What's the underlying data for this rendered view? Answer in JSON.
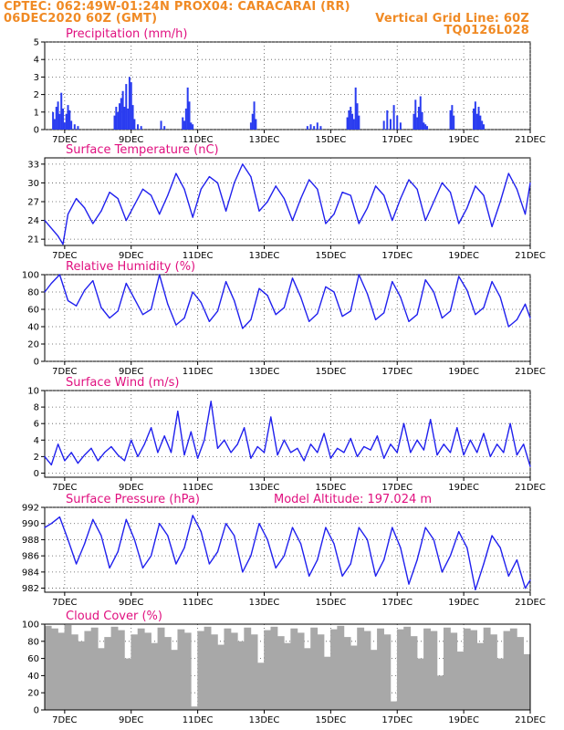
{
  "header": {
    "line1_left": "CPTEC:   062:49W-01:24N   PROX04: CARACARAI (RR)",
    "line2_left": "06DEC2020 60Z (GMT)",
    "line2_right": "Vertical Grid Line: 60Z",
    "line3_right": "TQ0126L028"
  },
  "colors": {
    "header": "#f08a24",
    "title": "#e0107f",
    "series": "#2020ee",
    "bars": "#2a3cf0",
    "cloud": "#a8a8a8"
  },
  "x_axis": {
    "tick_labels": [
      "7DEC",
      "9DEC",
      "11DEC",
      "13DEC",
      "15DEC",
      "17DEC",
      "19DEC",
      "21DEC"
    ],
    "tick_days": [
      7,
      9,
      11,
      13,
      15,
      17,
      19,
      21
    ],
    "range_days": [
      6.4,
      21.0
    ]
  },
  "chart_data": [
    {
      "type": "bar",
      "title": "Precipitation (mm/h)",
      "ylim": [
        0,
        5
      ],
      "yticks": [
        0,
        1,
        2,
        3,
        4,
        5
      ],
      "x_days": [
        6.65,
        6.7,
        6.75,
        6.8,
        6.85,
        6.9,
        6.95,
        7.0,
        7.05,
        7.1,
        7.15,
        7.2,
        7.3,
        7.4,
        8.5,
        8.55,
        8.6,
        8.65,
        8.7,
        8.75,
        8.8,
        8.85,
        8.9,
        8.95,
        9.0,
        9.05,
        9.1,
        9.2,
        9.3,
        9.9,
        10.0,
        10.55,
        10.6,
        10.65,
        10.7,
        10.75,
        10.8,
        10.85,
        12.6,
        12.65,
        12.7,
        12.75,
        14.3,
        14.4,
        14.5,
        14.6,
        14.7,
        15.5,
        15.55,
        15.6,
        15.65,
        15.7,
        15.75,
        15.8,
        15.85,
        16.6,
        16.7,
        16.8,
        16.9,
        17.0,
        17.1,
        17.5,
        17.55,
        17.6,
        17.65,
        17.7,
        17.75,
        17.8,
        17.85,
        17.9,
        18.6,
        18.65,
        18.7,
        19.3,
        19.35,
        19.4,
        19.45,
        19.5,
        19.55,
        19.6
      ],
      "values": [
        1.0,
        0.6,
        1.3,
        1.6,
        0.9,
        2.1,
        1.2,
        0.4,
        0.9,
        1.4,
        1.1,
        0.5,
        0.3,
        0.2,
        0.8,
        1.3,
        1.0,
        1.5,
        1.8,
        2.2,
        1.3,
        2.6,
        1.2,
        3.0,
        2.7,
        1.4,
        0.6,
        0.3,
        0.2,
        0.5,
        0.2,
        0.7,
        0.5,
        1.2,
        2.4,
        1.6,
        0.4,
        0.3,
        0.4,
        0.9,
        1.6,
        0.6,
        0.2,
        0.3,
        0.2,
        0.4,
        0.2,
        0.7,
        1.1,
        1.3,
        0.9,
        0.6,
        2.4,
        1.5,
        0.8,
        0.5,
        1.1,
        0.6,
        1.4,
        0.8,
        0.4,
        0.9,
        1.7,
        0.7,
        1.3,
        1.9,
        1.0,
        0.4,
        0.3,
        0.2,
        1.1,
        1.4,
        0.8,
        1.2,
        1.6,
        0.9,
        1.3,
        0.8,
        0.5,
        0.3
      ]
    },
    {
      "type": "line",
      "title": "Surface Temperature (nC)",
      "ylim": [
        20,
        34
      ],
      "yticks": [
        21,
        24,
        27,
        30,
        33
      ],
      "x_days": [
        6.4,
        6.8,
        6.95,
        7.1,
        7.35,
        7.6,
        7.85,
        8.1,
        8.35,
        8.6,
        8.85,
        9.1,
        9.35,
        9.6,
        9.85,
        10.1,
        10.35,
        10.6,
        10.85,
        11.1,
        11.35,
        11.6,
        11.85,
        12.1,
        12.35,
        12.6,
        12.85,
        13.1,
        13.35,
        13.6,
        13.85,
        14.1,
        14.35,
        14.6,
        14.85,
        15.1,
        15.35,
        15.6,
        15.85,
        16.1,
        16.35,
        16.6,
        16.85,
        17.1,
        17.35,
        17.6,
        17.85,
        18.1,
        18.35,
        18.6,
        18.85,
        19.1,
        19.35,
        19.6,
        19.85,
        20.1,
        20.35,
        20.6,
        20.85,
        21.0
      ],
      "values": [
        24,
        21.5,
        20.2,
        25,
        27.5,
        26,
        23.5,
        25.5,
        28.5,
        27.5,
        24,
        26.5,
        29,
        28,
        25,
        28,
        31.5,
        29,
        24.5,
        29,
        31,
        30,
        25.5,
        30,
        33,
        31,
        25.5,
        27,
        29.5,
        27.5,
        24,
        27.5,
        30.5,
        29,
        23.5,
        25,
        28.5,
        28,
        23.5,
        26,
        29.5,
        28,
        24,
        27.5,
        30.5,
        29,
        24,
        27,
        30,
        28.5,
        23.5,
        26,
        29.5,
        28,
        23,
        27,
        31.5,
        29,
        25,
        30
      ]
    },
    {
      "type": "line",
      "title": "Relative Humidity (%)",
      "ylim": [
        0,
        100
      ],
      "yticks": [
        0,
        20,
        40,
        60,
        80,
        100
      ],
      "x_days": [
        6.4,
        6.6,
        6.85,
        7.1,
        7.35,
        7.6,
        7.85,
        8.1,
        8.35,
        8.6,
        8.85,
        9.1,
        9.35,
        9.6,
        9.85,
        10.1,
        10.35,
        10.6,
        10.85,
        11.1,
        11.35,
        11.6,
        11.85,
        12.1,
        12.35,
        12.6,
        12.85,
        13.1,
        13.35,
        13.6,
        13.85,
        14.1,
        14.35,
        14.6,
        14.85,
        15.1,
        15.35,
        15.6,
        15.85,
        16.1,
        16.35,
        16.6,
        16.85,
        17.1,
        17.35,
        17.6,
        17.85,
        18.1,
        18.35,
        18.6,
        18.85,
        19.1,
        19.35,
        19.6,
        19.85,
        20.1,
        20.35,
        20.6,
        20.85,
        21.0
      ],
      "values": [
        80,
        90,
        100,
        70,
        64,
        82,
        93,
        62,
        50,
        58,
        90,
        72,
        54,
        60,
        100,
        66,
        42,
        50,
        80,
        68,
        46,
        58,
        92,
        70,
        38,
        48,
        84,
        76,
        54,
        62,
        96,
        74,
        46,
        55,
        86,
        80,
        52,
        58,
        100,
        78,
        48,
        56,
        92,
        74,
        46,
        54,
        94,
        80,
        50,
        58,
        98,
        82,
        54,
        62,
        92,
        74,
        40,
        48,
        66,
        50
      ]
    },
    {
      "type": "line",
      "title": "Surface Wind (m/s)",
      "ylim": [
        -0.5,
        10
      ],
      "yticks": [
        0,
        2,
        4,
        6,
        8,
        10
      ],
      "x_days": [
        6.4,
        6.6,
        6.8,
        7.0,
        7.2,
        7.4,
        7.6,
        7.8,
        8.0,
        8.2,
        8.4,
        8.6,
        8.8,
        9.0,
        9.2,
        9.4,
        9.6,
        9.8,
        10.0,
        10.2,
        10.4,
        10.6,
        10.8,
        11.0,
        11.2,
        11.4,
        11.6,
        11.8,
        12.0,
        12.2,
        12.4,
        12.6,
        12.8,
        13.0,
        13.2,
        13.4,
        13.6,
        13.8,
        14.0,
        14.2,
        14.4,
        14.6,
        14.8,
        15.0,
        15.2,
        15.4,
        15.6,
        15.8,
        16.0,
        16.2,
        16.4,
        16.6,
        16.8,
        17.0,
        17.2,
        17.4,
        17.6,
        17.8,
        18.0,
        18.2,
        18.4,
        18.6,
        18.8,
        19.0,
        19.2,
        19.4,
        19.6,
        19.8,
        20.0,
        20.2,
        20.4,
        20.6,
        20.8,
        21.0
      ],
      "values": [
        2,
        1,
        3.5,
        1.5,
        2.5,
        1.2,
        2.2,
        3,
        1.5,
        2.5,
        3.2,
        2.2,
        1.5,
        4,
        2,
        3.5,
        5.5,
        2.5,
        4.5,
        2.5,
        7.5,
        2.2,
        5,
        1.8,
        4,
        8.7,
        3,
        4,
        2.5,
        3.5,
        5.5,
        1.8,
        3.2,
        2.5,
        6.8,
        2.2,
        4,
        2.5,
        3,
        1.5,
        3.5,
        2.5,
        4.8,
        1.8,
        3,
        2.5,
        4.2,
        2,
        3.2,
        2.8,
        4.5,
        1.8,
        3.5,
        2.5,
        6,
        2.5,
        4,
        2.8,
        6.5,
        2.2,
        3.5,
        2.5,
        5.5,
        2.2,
        4,
        2.5,
        4.8,
        2,
        3.5,
        2.5,
        6,
        2.2,
        3.5,
        0.8
      ]
    },
    {
      "type": "line",
      "title": "Surface Pressure (hPa)",
      "annotation": "Model Altitude: 197.024 m",
      "ylim": [
        981.5,
        992
      ],
      "yticks": [
        982,
        984,
        986,
        988,
        990,
        992
      ],
      "x_days": [
        6.4,
        6.6,
        6.85,
        7.1,
        7.35,
        7.6,
        7.85,
        8.1,
        8.35,
        8.6,
        8.85,
        9.1,
        9.35,
        9.6,
        9.85,
        10.1,
        10.35,
        10.6,
        10.85,
        11.1,
        11.35,
        11.6,
        11.85,
        12.1,
        12.35,
        12.6,
        12.85,
        13.1,
        13.35,
        13.6,
        13.85,
        14.1,
        14.35,
        14.6,
        14.85,
        15.1,
        15.35,
        15.6,
        15.85,
        16.1,
        16.35,
        16.6,
        16.85,
        17.1,
        17.35,
        17.6,
        17.85,
        18.1,
        18.35,
        18.6,
        18.85,
        19.1,
        19.35,
        19.6,
        19.85,
        20.1,
        20.35,
        20.6,
        20.85,
        21.0
      ],
      "values": [
        989.5,
        990,
        990.8,
        988,
        985,
        987.5,
        990.5,
        988.5,
        984.5,
        986.5,
        990.5,
        988,
        984.5,
        986,
        990,
        988.5,
        985,
        987,
        991,
        989,
        985,
        986.5,
        990,
        988.5,
        984,
        986,
        990,
        988,
        984.5,
        986,
        989.5,
        987.5,
        983.5,
        985.5,
        989.5,
        987.5,
        983.5,
        985,
        989.5,
        988,
        983.5,
        985.5,
        989.5,
        987,
        982.5,
        985.5,
        989.5,
        988,
        984,
        986,
        989,
        987,
        981.8,
        985,
        988.5,
        987,
        983.5,
        985.5,
        982,
        983
      ]
    },
    {
      "type": "bar",
      "title": "Cloud Cover (%)",
      "ylim": [
        0,
        100
      ],
      "yticks": [
        0,
        20,
        40,
        60,
        80,
        100
      ],
      "x_days": [
        6.5,
        6.7,
        6.9,
        7.1,
        7.3,
        7.5,
        7.7,
        7.9,
        8.1,
        8.3,
        8.5,
        8.7,
        8.9,
        9.1,
        9.3,
        9.5,
        9.7,
        9.9,
        10.1,
        10.3,
        10.5,
        10.7,
        10.9,
        11.1,
        11.3,
        11.5,
        11.7,
        11.9,
        12.1,
        12.3,
        12.5,
        12.7,
        12.9,
        13.1,
        13.3,
        13.5,
        13.7,
        13.9,
        14.1,
        14.3,
        14.5,
        14.7,
        14.9,
        15.1,
        15.3,
        15.5,
        15.7,
        15.9,
        16.1,
        16.3,
        16.5,
        16.7,
        16.9,
        17.1,
        17.3,
        17.5,
        17.7,
        17.9,
        18.1,
        18.3,
        18.5,
        18.7,
        18.9,
        19.1,
        19.3,
        19.5,
        19.7,
        19.9,
        20.1,
        20.3,
        20.5,
        20.7,
        20.9
      ],
      "values": [
        98,
        95,
        90,
        99,
        88,
        80,
        92,
        96,
        72,
        85,
        97,
        93,
        60,
        88,
        95,
        90,
        78,
        96,
        85,
        70,
        94,
        90,
        4,
        92,
        97,
        88,
        76,
        95,
        90,
        80,
        96,
        88,
        55,
        93,
        97,
        86,
        78,
        95,
        90,
        72,
        96,
        88,
        62,
        94,
        98,
        85,
        75,
        96,
        92,
        70,
        95,
        88,
        10,
        94,
        97,
        86,
        60,
        95,
        92,
        40,
        96,
        90,
        68,
        95,
        93,
        78,
        96,
        88,
        60,
        92,
        95,
        85,
        65
      ]
    }
  ]
}
